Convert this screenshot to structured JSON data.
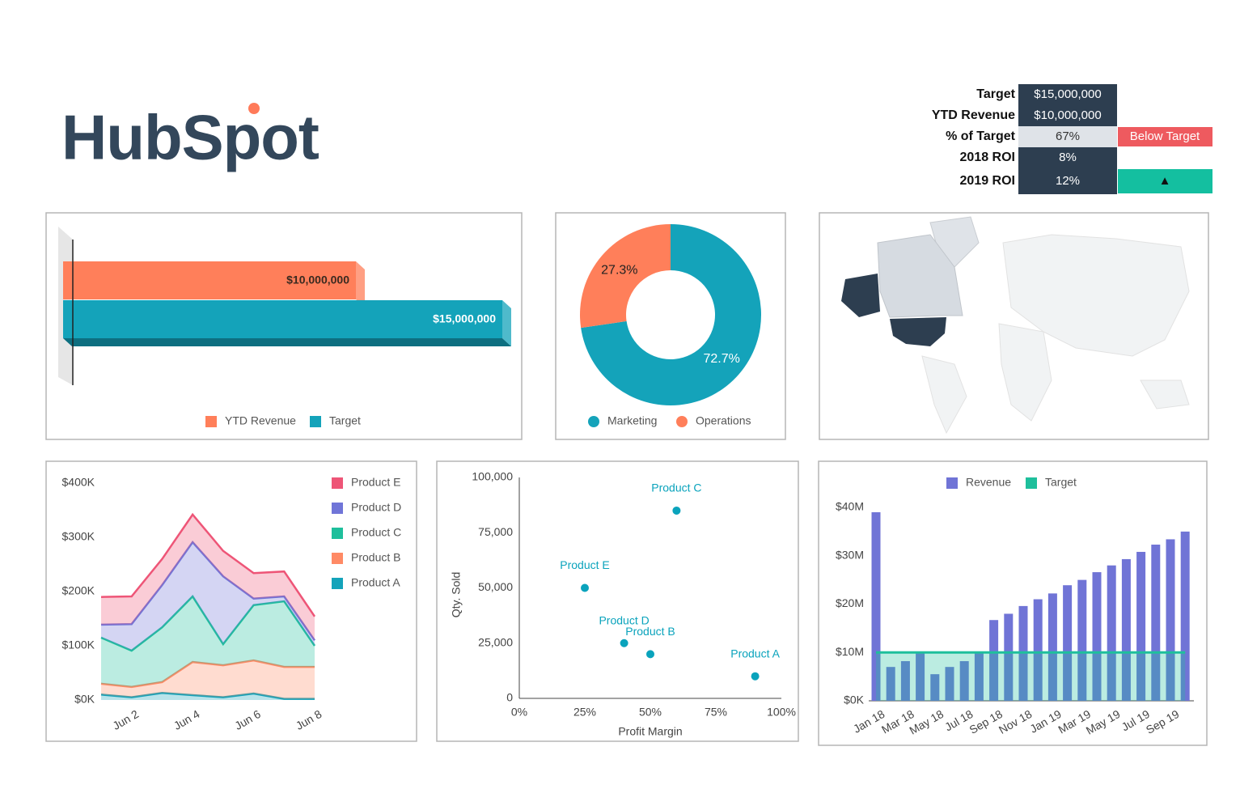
{
  "logo": {
    "text": "HubSpot"
  },
  "kpi": {
    "rows": [
      {
        "label": "Target",
        "value": "$15,000,000"
      },
      {
        "label": "YTD Revenue",
        "value": "$10,000,000"
      },
      {
        "label": "% of Target",
        "value": "67%",
        "status": "Below Target"
      },
      {
        "label": "2018 ROI",
        "value": "8%"
      },
      {
        "label": "2019 ROI",
        "value": "12%",
        "status": "▲"
      }
    ]
  },
  "chart_data": [
    {
      "type": "bar",
      "orientation": "horizontal",
      "xlim": [
        0,
        15000000
      ],
      "legend": "bottom",
      "series": [
        {
          "name": "YTD Revenue",
          "color": "#ff7f5a",
          "values": [
            10000000
          ],
          "value_labels": [
            "$10,000,000"
          ]
        },
        {
          "name": "Target",
          "color": "#14a3ba",
          "values": [
            15000000
          ],
          "value_labels": [
            "$15,000,000"
          ]
        }
      ]
    },
    {
      "type": "pie",
      "donut": true,
      "legend": "bottom",
      "categories": [
        "Marketing",
        "Operations"
      ],
      "values": [
        72.7,
        27.3
      ],
      "value_labels": [
        "72.7%",
        "27.3%"
      ],
      "colors": [
        "#14a3ba",
        "#ff7f5a"
      ]
    },
    {
      "type": "area",
      "stacked": true,
      "legend": "top-right",
      "categories": [
        null,
        "Jun 2",
        null,
        "Jun 4",
        null,
        "Jun 6",
        null,
        "Jun 8"
      ],
      "series": [
        {
          "name": "Product A",
          "color": "#14a3ba",
          "values": [
            10,
            5,
            13,
            9,
            5,
            12,
            2,
            2
          ]
        },
        {
          "name": "Product B",
          "color": "#ff8a65",
          "values": [
            20,
            19,
            20,
            61,
            59,
            61,
            59,
            59
          ]
        },
        {
          "name": "Product C",
          "color": "#1ebf9c",
          "values": [
            85,
            67,
            101,
            121,
            39,
            102,
            121,
            39
          ]
        },
        {
          "name": "Product D",
          "color": "#7075d8",
          "values": [
            24,
            49,
            78,
            100,
            125,
            12,
            9,
            10
          ]
        },
        {
          "name": "Product E",
          "color": "#ee5577",
          "values": [
            51,
            51,
            48,
            51,
            47,
            47,
            46,
            44
          ]
        }
      ],
      "ylim": [
        0,
        400
      ],
      "yticks": [
        {
          "value": 0,
          "label": "$0K"
        },
        {
          "value": 100,
          "label": "$100K"
        },
        {
          "value": 200,
          "label": "$200K"
        },
        {
          "value": 300,
          "label": "$300K"
        },
        {
          "value": 400,
          "label": "$400K"
        }
      ]
    },
    {
      "type": "scatter",
      "xlabel": "Profit Margin",
      "ylabel": "Qty. Sold",
      "color": "#0aa3bc",
      "points": [
        {
          "name": "Product C",
          "x": 60,
          "y": 85000
        },
        {
          "name": "Product E",
          "x": 25,
          "y": 50000
        },
        {
          "name": "Product D",
          "x": 40,
          "y": 25000
        },
        {
          "name": "Product B",
          "x": 50,
          "y": 20000
        },
        {
          "name": "Product A",
          "x": 90,
          "y": 10000
        }
      ],
      "xlim": [
        0,
        100
      ],
      "xticks": [
        {
          "value": 0,
          "label": "0%"
        },
        {
          "value": 25,
          "label": "25%"
        },
        {
          "value": 50,
          "label": "50%"
        },
        {
          "value": 75,
          "label": "75%"
        },
        {
          "value": 100,
          "label": "100%"
        }
      ],
      "ylim": [
        0,
        100000
      ],
      "yticks": [
        0,
        {
          "value": 25000,
          "label": "25,000"
        },
        {
          "value": 50000,
          "label": "50,000"
        },
        {
          "value": 75000,
          "label": "75,000"
        },
        {
          "value": 100000,
          "label": "100,000"
        }
      ]
    },
    {
      "type": "combo",
      "legend": "top",
      "categories": [
        "Jan 18",
        null,
        "Mar 18",
        null,
        "May 18",
        null,
        "Jul 18",
        null,
        "Sep 18",
        null,
        "Nov 18",
        null,
        "Jan 19",
        null,
        "Mar 19",
        null,
        "May 19",
        null,
        "Jul 19",
        null,
        "Sep 19",
        null
      ],
      "series": [
        {
          "name": "Revenue",
          "kind": "bar",
          "color": "#7074d6",
          "values": [
            39000000,
            7000000,
            8200000,
            10000000,
            5500000,
            7000000,
            8200000,
            10000000,
            16700000,
            18000000,
            19600000,
            21000000,
            22200000,
            23900000,
            25000000,
            26600000,
            28000000,
            29300000,
            30800000,
            32300000,
            33400000,
            35000000
          ]
        },
        {
          "name": "Target",
          "kind": "line",
          "color": "#1ebf9c",
          "values": [
            10000000,
            10000000,
            10000000,
            10000000,
            10000000,
            10000000,
            10000000,
            10000000,
            10000000,
            10000000,
            10000000,
            10000000,
            10000000,
            10000000,
            10000000,
            10000000,
            10000000,
            10000000,
            10000000,
            10000000,
            10000000,
            10000000
          ]
        }
      ],
      "ylim": [
        0,
        40000000
      ],
      "yticks": [
        {
          "value": 0,
          "label": "$0K"
        },
        {
          "value": 10000000,
          "label": "$10M"
        },
        {
          "value": 20000000,
          "label": "$20M"
        },
        {
          "value": 30000000,
          "label": "$30M"
        },
        {
          "value": 40000000,
          "label": "$40M"
        }
      ]
    }
  ]
}
